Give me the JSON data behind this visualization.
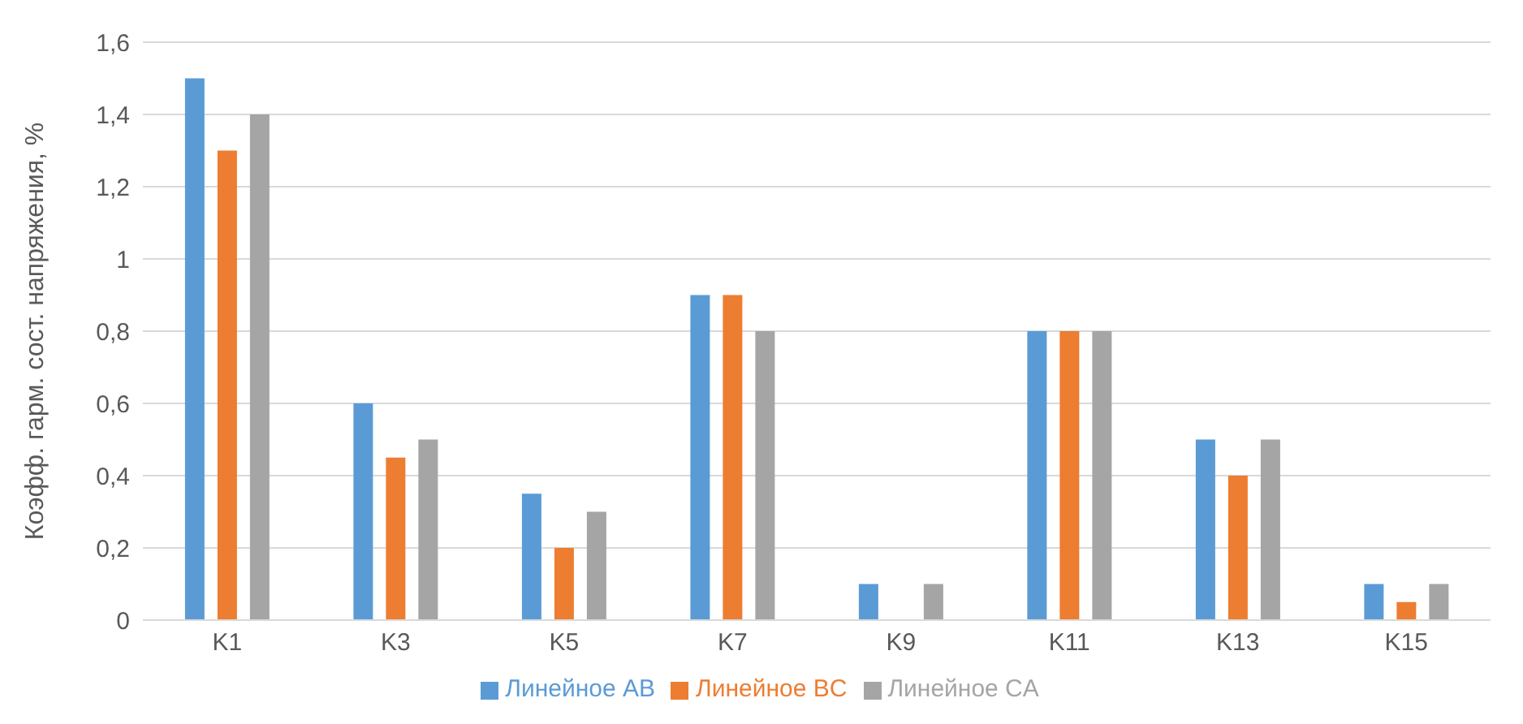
{
  "chart_data": {
    "type": "bar",
    "ylabel": "Коэфф. гарм. сост. напряжения, %",
    "categories": [
      "K1",
      "K3",
      "K5",
      "K7",
      "K9",
      "K11",
      "K13",
      "K15"
    ],
    "series": [
      {
        "name": "Линейное AB",
        "color": "#5b9bd5",
        "values": [
          1.5,
          0.6,
          0.35,
          0.9,
          0.1,
          0.8,
          0.5,
          0.1
        ]
      },
      {
        "name": "Линейное BC",
        "color": "#ed7d31",
        "values": [
          1.3,
          0.45,
          0.2,
          0.9,
          0,
          0.8,
          0.4,
          0.05
        ]
      },
      {
        "name": "Линейное CA",
        "color": "#a5a5a5",
        "values": [
          1.4,
          0.5,
          0.3,
          0.8,
          0.1,
          0.8,
          0.5,
          0.1
        ]
      }
    ],
    "ylim": [
      0,
      1.6
    ],
    "yticks": [
      0,
      {
        "value": 0.2,
        "label": "0,2"
      },
      {
        "value": 0.4,
        "label": "0,4"
      },
      {
        "value": 0.6,
        "label": "0,6"
      },
      {
        "value": 0.8,
        "label": "0,8"
      },
      1,
      {
        "value": 1.2,
        "label": "1,2"
      },
      {
        "value": 1.4,
        "label": "1,4"
      },
      {
        "value": 1.6,
        "label": "1,6"
      }
    ],
    "grid": "y",
    "legend": "bottom"
  }
}
